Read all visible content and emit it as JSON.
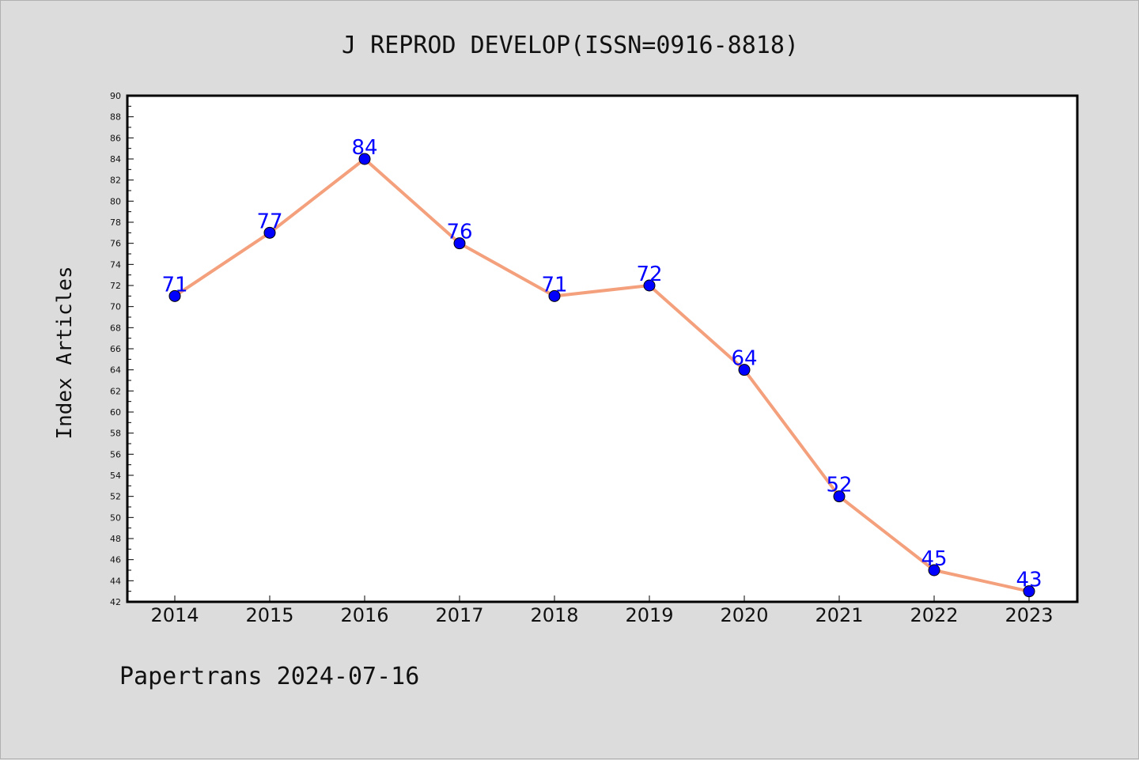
{
  "colors": {
    "background": "#dcdcdc",
    "plot_background": "#ffffff",
    "line": "#f4a07c",
    "marker": "#0000ff",
    "data_label": "#0000ff",
    "axis": "#000000"
  },
  "footer": "Papertrans 2024-07-16",
  "chart_data": {
    "type": "line",
    "title": "J REPROD DEVELOP(ISSN=0916-8818)",
    "xlabel": "",
    "ylabel": "Index Articles",
    "categories": [
      "2014",
      "2015",
      "2016",
      "2017",
      "2018",
      "2019",
      "2020",
      "2021",
      "2022",
      "2023"
    ],
    "series": [
      {
        "values": [
          71,
          77,
          84,
          76,
          71,
          72,
          64,
          52,
          45,
          43
        ]
      }
    ],
    "ylim": [
      42,
      90
    ],
    "yticks": [
      42,
      44,
      46,
      48,
      50,
      52,
      54,
      56,
      58,
      60,
      62,
      64,
      66,
      68,
      70,
      72,
      74,
      76,
      78,
      80,
      82,
      84,
      86,
      88,
      90
    ],
    "grid": false,
    "legend": "none",
    "data_labels": true
  }
}
